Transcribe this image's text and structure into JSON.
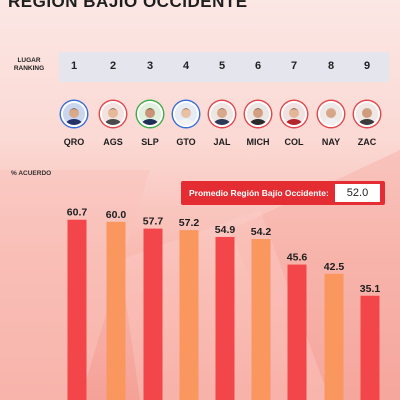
{
  "header": {
    "title": "REGIÓN BAJÍO OCCIDENTE"
  },
  "ranking": {
    "label": "LUGAR RANKING",
    "numbers": [
      "1",
      "2",
      "3",
      "4",
      "5",
      "6",
      "7",
      "8",
      "9"
    ]
  },
  "states": [
    "QRO",
    "AGS",
    "SLP",
    "GTO",
    "JAL",
    "MICH",
    "COL",
    "NAY",
    "ZAC"
  ],
  "avatars": [
    {
      "ring": "#3b6fd8",
      "bg": "#c9d6f0",
      "suit": "#27326b",
      "skin": "#d9a98a",
      "hair": "#2b2b2b"
    },
    {
      "ring": "#e2474c",
      "bg": "#f3e3e0",
      "suit": "#4a4a4a",
      "skin": "#e5b99a",
      "hair": "#3a2a20"
    },
    {
      "ring": "#3fae49",
      "bg": "#dff0dd",
      "suit": "#1f2f55",
      "skin": "#c99477",
      "hair": "#1f1f1f"
    },
    {
      "ring": "#3b6fd8",
      "bg": "#e6ecf6",
      "suit": "#f2f2f2",
      "skin": "#e8c0a4",
      "hair": "#4a3020"
    },
    {
      "ring": "#e2474c",
      "bg": "#efe6e4",
      "suit": "#2d3a55",
      "skin": "#d8a88a",
      "hair": "#555555"
    },
    {
      "ring": "#e2474c",
      "bg": "#ece6e4",
      "suit": "#2a2a2a",
      "skin": "#d3a084",
      "hair": "#3a3a3a"
    },
    {
      "ring": "#e2474c",
      "bg": "#f1e1e1",
      "suit": "#b3262c",
      "skin": "#e2b696",
      "hair": "#2a1a14"
    },
    {
      "ring": "#e2474c",
      "bg": "#eee8e6",
      "suit": "#f0f0f0",
      "skin": "#d7a588",
      "hair": "#cfcfcf"
    },
    {
      "ring": "#e2474c",
      "bg": "#efe8e4",
      "suit": "#3a3a3a",
      "skin": "#cf9c7e",
      "hair": "#c8b088"
    }
  ],
  "average": {
    "label": "Promedio Región Bajío Occidente:",
    "value": "52.0"
  },
  "chart_data": {
    "type": "bar",
    "categories": [
      "QRO",
      "AGS",
      "SLP",
      "GTO",
      "JAL",
      "MICH",
      "COL",
      "NAY",
      "ZAC"
    ],
    "values": [
      60.7,
      60.0,
      57.7,
      57.2,
      54.9,
      54.2,
      45.6,
      42.5,
      35.1
    ],
    "ylabel": "% ACUERDO",
    "colors": [
      "#f2464a",
      "#f9975f",
      "#f2464a",
      "#f9975f",
      "#f2464a",
      "#f9975f",
      "#f2464a",
      "#f9975f",
      "#f2464a"
    ]
  }
}
